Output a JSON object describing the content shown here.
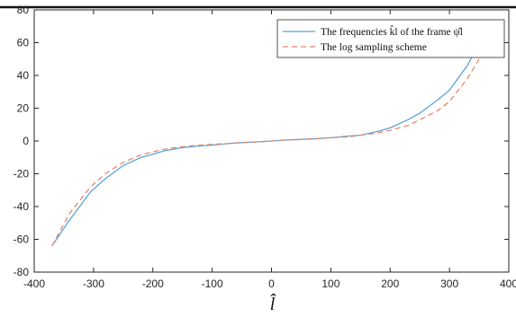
{
  "chart_data": {
    "type": "line",
    "title": "",
    "xlabel": "l̂",
    "ylabel": "",
    "xlim": [
      -400,
      400
    ],
    "ylim": [
      -80,
      80
    ],
    "xticks": [
      -400,
      -300,
      -200,
      -100,
      0,
      100,
      200,
      300,
      400
    ],
    "yticks": [
      -80,
      -60,
      -40,
      -20,
      0,
      20,
      40,
      60,
      80
    ],
    "grid": false,
    "legend_position": "top-right",
    "colors": {
      "frequencies": "#5aa5d8",
      "log_scheme": "#e8856a",
      "axes": "#262626"
    },
    "series": [
      {
        "name": "The frequencies k̂l of the frame ψ̂l",
        "style": "solid",
        "x": [
          -370,
          -340,
          -305,
          -280,
          -250,
          -220,
          -200,
          -180,
          -150,
          -120,
          -100,
          -70,
          -50,
          -20,
          0,
          20,
          50,
          80,
          100,
          130,
          150,
          180,
          200,
          230,
          250,
          280,
          300,
          330,
          345
        ],
        "y": [
          -64,
          -48,
          -31,
          -23,
          -15,
          -10,
          -8,
          -6,
          -4,
          -3,
          -2.5,
          -1.5,
          -1,
          -0.5,
          0,
          0.5,
          1,
          1.5,
          2,
          3,
          3.5,
          6,
          8,
          13,
          17,
          25,
          31,
          46,
          56
        ]
      },
      {
        "name": "The log sampling scheme",
        "style": "dashed",
        "x": [
          -370,
          -340,
          -305,
          -280,
          -250,
          -220,
          -200,
          -180,
          -150,
          -120,
          -100,
          -70,
          -50,
          -20,
          0,
          20,
          50,
          80,
          100,
          130,
          150,
          180,
          200,
          230,
          250,
          280,
          300,
          330,
          360
        ],
        "y": [
          -64,
          -44,
          -28,
          -20,
          -13,
          -8.5,
          -6.5,
          -5,
          -3.5,
          -2.5,
          -2,
          -1.5,
          -1,
          -0.5,
          0,
          0.5,
          1,
          1.5,
          2,
          2.5,
          3.5,
          5,
          6.5,
          9.5,
          13,
          18.5,
          24,
          38,
          56
        ]
      }
    ]
  }
}
